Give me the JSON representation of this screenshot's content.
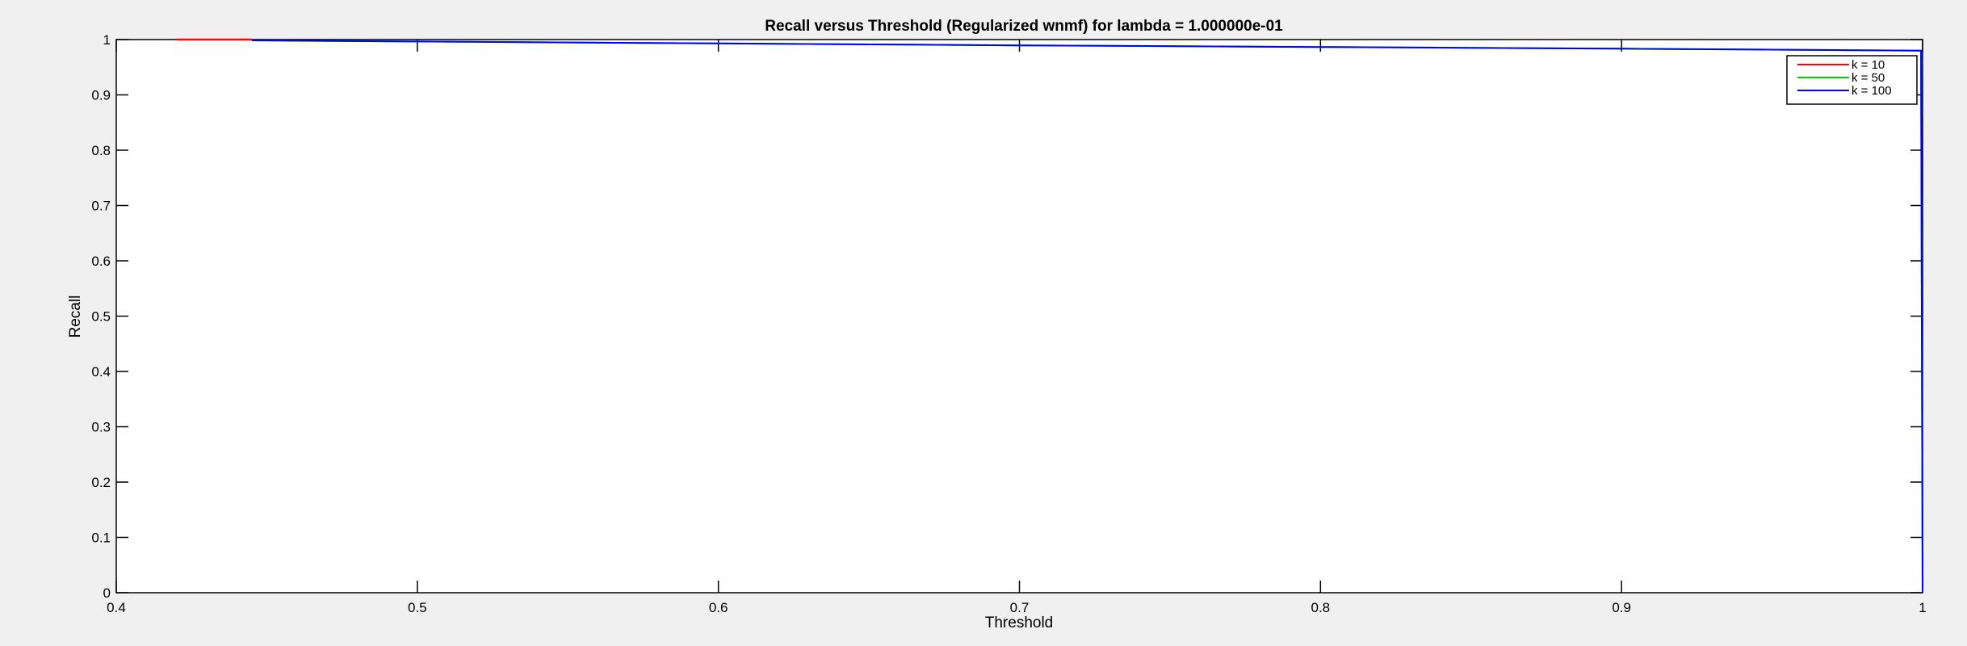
{
  "chart_data": {
    "type": "line",
    "title": "Recall versus Threshold (Regularized wnmf) for lambda = 1.000000e-01",
    "xlabel": "Threshold",
    "ylabel": "Recall",
    "xlim": [
      0.4,
      1.0
    ],
    "ylim": [
      0,
      1
    ],
    "x_ticks": [
      0.4,
      0.5,
      0.6,
      0.7,
      0.8,
      0.9,
      1.0
    ],
    "x_tick_labels": [
      "0.4",
      "0.5",
      "0.6",
      "0.7",
      "0.8",
      "0.9",
      "1"
    ],
    "y_ticks": [
      0,
      0.1,
      0.2,
      0.3,
      0.4,
      0.5,
      0.6,
      0.7,
      0.8,
      0.9,
      1.0
    ],
    "y_tick_labels": [
      "0",
      "0.1",
      "0.2",
      "0.3",
      "0.4",
      "0.5",
      "0.6",
      "0.7",
      "0.8",
      "0.9",
      "1"
    ],
    "grid": false,
    "legend_position": "top-right",
    "series": [
      {
        "name": "k = 10",
        "color": "#ff0000",
        "x": [
          0.42,
          0.445
        ],
        "y": [
          1.0,
          1.0
        ]
      },
      {
        "name": "k = 50",
        "color": "#00cc00",
        "x": [
          0.445,
          0.5,
          0.6,
          0.7,
          0.8,
          0.9,
          0.9995,
          1.0
        ],
        "y": [
          0.9985,
          0.9965,
          0.993,
          0.9895,
          0.9865,
          0.9835,
          0.98,
          0.0
        ]
      },
      {
        "name": "k = 100",
        "color": "#0000ff",
        "x": [
          0.445,
          0.5,
          0.6,
          0.7,
          0.8,
          0.9,
          0.9995,
          1.0
        ],
        "y": [
          0.9985,
          0.9965,
          0.993,
          0.9895,
          0.9865,
          0.9835,
          0.98,
          0.0
        ]
      }
    ]
  }
}
